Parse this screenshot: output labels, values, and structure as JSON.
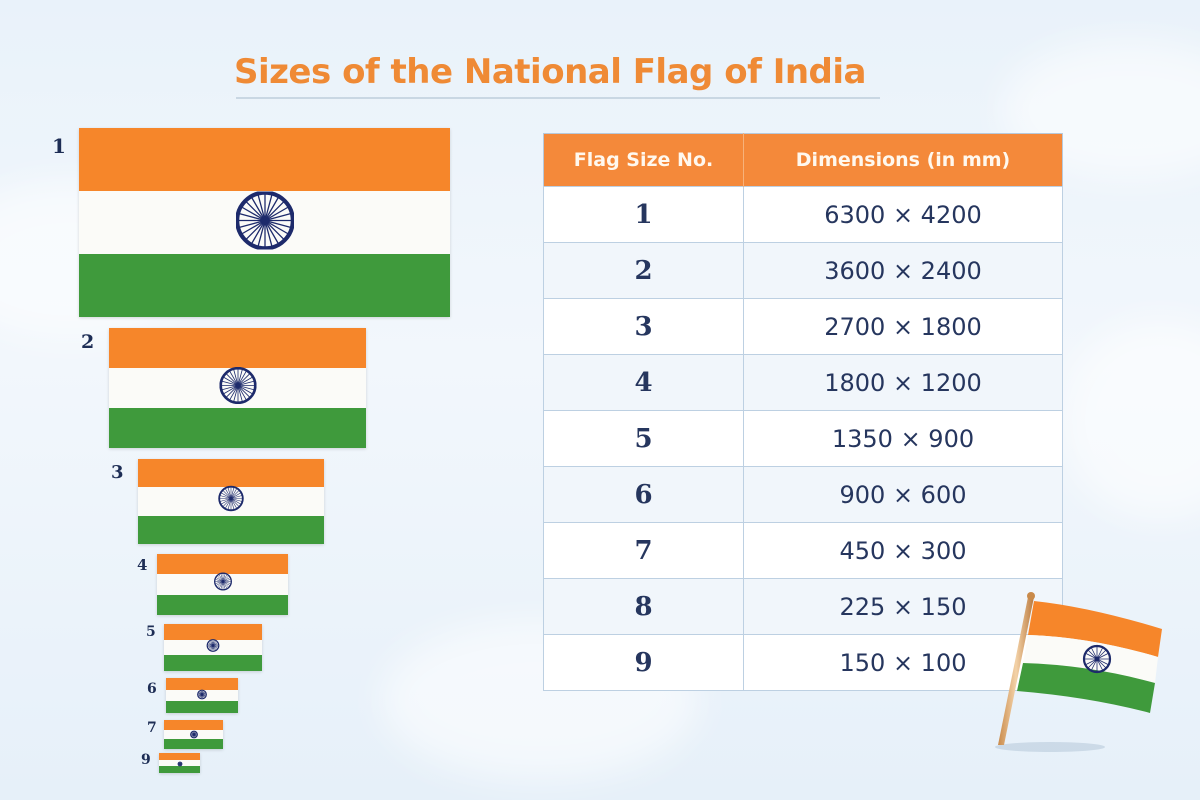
{
  "title": "Sizes of the National Flag of India",
  "colors": {
    "saffron": "#f6862a",
    "white": "#fbfbf8",
    "green": "#3f9a3c",
    "chakra": "#1d2a6b",
    "title": "#ef8a35",
    "header_bg": "#f4893a",
    "text": "#26365e"
  },
  "flags_illustration": [
    {
      "label": "1"
    },
    {
      "label": "2"
    },
    {
      "label": "3"
    },
    {
      "label": "4"
    },
    {
      "label": "5"
    },
    {
      "label": "6"
    },
    {
      "label": "7"
    },
    {
      "label": "9"
    }
  ],
  "table": {
    "headers": [
      "Flag Size No.",
      "Dimensions (in mm)"
    ],
    "rows": [
      {
        "size_no": "1",
        "dimensions": "6300 × 4200"
      },
      {
        "size_no": "2",
        "dimensions": "3600 × 2400"
      },
      {
        "size_no": "3",
        "dimensions": "2700 × 1800"
      },
      {
        "size_no": "4",
        "dimensions": "1800 × 1200"
      },
      {
        "size_no": "5",
        "dimensions": "1350 × 900"
      },
      {
        "size_no": "6",
        "dimensions": "900 × 600"
      },
      {
        "size_no": "7",
        "dimensions": "450 × 300"
      },
      {
        "size_no": "8",
        "dimensions": "225 × 150"
      },
      {
        "size_no": "9",
        "dimensions": "150 × 100"
      }
    ]
  },
  "chart_data": {
    "type": "table",
    "title": "Sizes of the National Flag of India",
    "columns": [
      "Flag Size No.",
      "Dimensions (in mm)"
    ],
    "rows": [
      [
        "1",
        "6300 × 4200"
      ],
      [
        "2",
        "3600 × 2400"
      ],
      [
        "3",
        "2700 × 1800"
      ],
      [
        "4",
        "1800 × 1200"
      ],
      [
        "5",
        "1350 × 900"
      ],
      [
        "6",
        "900 × 600"
      ],
      [
        "7",
        "450 × 300"
      ],
      [
        "8",
        "225 × 150"
      ],
      [
        "9",
        "150 × 100"
      ]
    ]
  }
}
